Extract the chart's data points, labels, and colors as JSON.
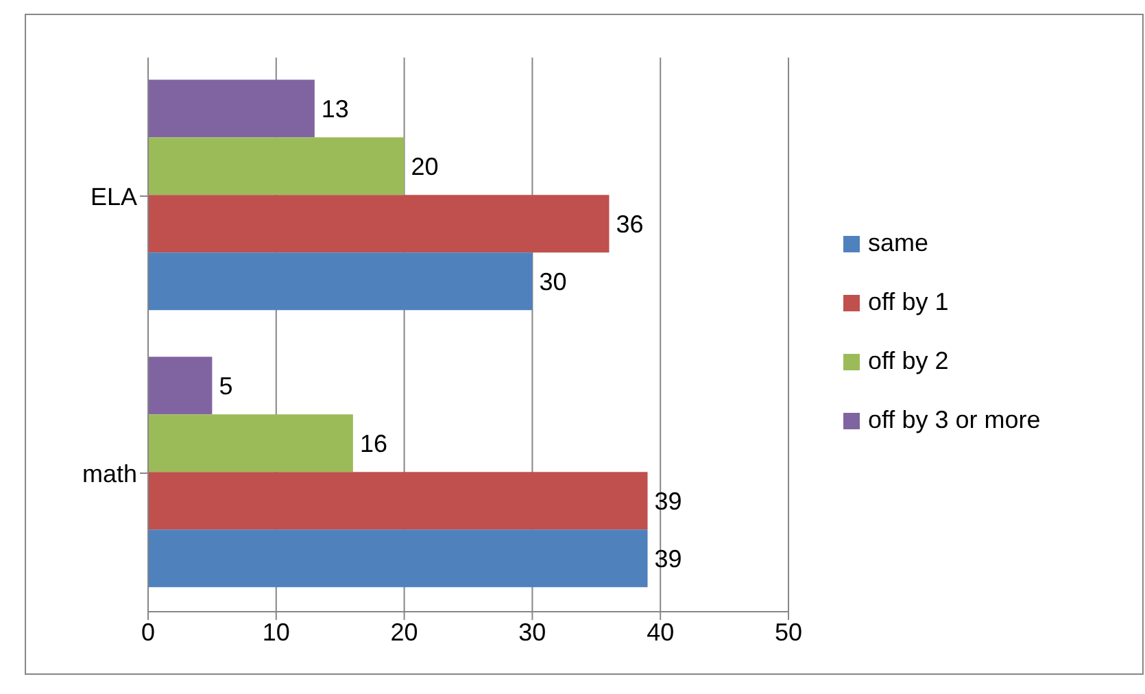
{
  "chart_data": {
    "type": "bar",
    "orientation": "horizontal",
    "categories": [
      "ELA",
      "math"
    ],
    "series": [
      {
        "name": "same",
        "color": "#4f81bd",
        "values": [
          30,
          39
        ]
      },
      {
        "name": "off by 1",
        "color": "#c0504d",
        "values": [
          36,
          39
        ]
      },
      {
        "name": "off by 2",
        "color": "#9bbb59",
        "values": [
          20,
          16
        ]
      },
      {
        "name": "off by 3 or more",
        "color": "#8064a2",
        "values": [
          13,
          5
        ]
      }
    ],
    "xlim": [
      0,
      50
    ],
    "xticks": [
      0,
      10,
      20,
      30,
      40,
      50
    ],
    "grid": "x",
    "legend": "right",
    "data_labels": true
  }
}
